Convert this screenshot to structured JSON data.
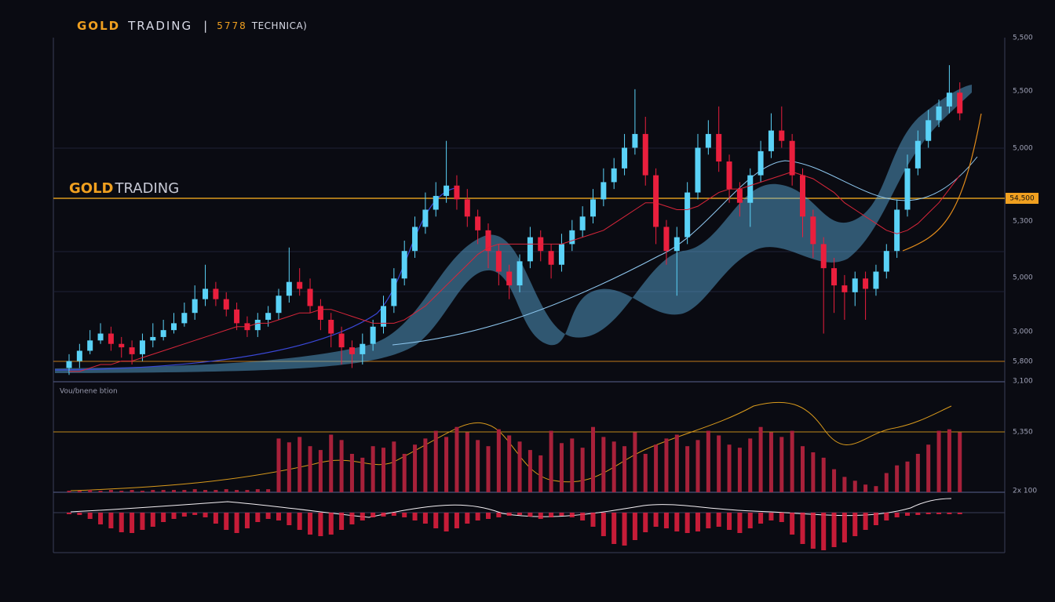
{
  "header": {
    "part1": "GOLD",
    "part2": "TRADING",
    "separator": "|",
    "part3": "5778",
    "part4": "TECHNICA)"
  },
  "price_label": {
    "part1": "GOLD",
    "part2": "TRADING"
  },
  "level_tag": "54,500",
  "right_labels": [
    "5,500",
    "5,500",
    "5,000",
    "5,300",
    "5,000",
    "3,000",
    "5,800",
    "3,100",
    "5,350",
    "2x 100"
  ],
  "volume_label": "Vou/bnene btion",
  "chart_data": [
    {
      "type": "candlestick",
      "ylim": [
        0,
        100
      ],
      "up_color": "#5ad2f7",
      "down_color": "#ea1f3d",
      "open": [
        4,
        6,
        9,
        12,
        14,
        11,
        10,
        8,
        12,
        13,
        15,
        17,
        20,
        24,
        27,
        24,
        21,
        17,
        15,
        18,
        20,
        25,
        29,
        27,
        22,
        18,
        14,
        10,
        8,
        11,
        16,
        22,
        30,
        38,
        45,
        50,
        54,
        57,
        53,
        48,
        44,
        38,
        32,
        28,
        35,
        42,
        38,
        34,
        40,
        44,
        48,
        53,
        58,
        62,
        68,
        72,
        60,
        45,
        38,
        42,
        55,
        68,
        72,
        64,
        56,
        52,
        60,
        67,
        73,
        70,
        60,
        48,
        40,
        33,
        28,
        26,
        30,
        27,
        32,
        38,
        50,
        62,
        70,
        76,
        80,
        84
      ],
      "high": [
        8,
        11,
        15,
        17,
        16,
        13,
        12,
        14,
        17,
        18,
        20,
        23,
        28,
        34,
        29,
        26,
        23,
        19,
        20,
        22,
        27,
        39,
        33,
        30,
        24,
        20,
        16,
        12,
        14,
        18,
        25,
        33,
        41,
        48,
        55,
        58,
        70,
        60,
        56,
        50,
        46,
        40,
        34,
        37,
        45,
        44,
        40,
        43,
        47,
        51,
        56,
        62,
        65,
        72,
        85,
        77,
        62,
        47,
        45,
        58,
        72,
        76,
        80,
        66,
        58,
        62,
        70,
        78,
        80,
        72,
        62,
        50,
        42,
        36,
        31,
        32,
        32,
        34,
        40,
        53,
        66,
        73,
        79,
        82,
        92,
        87
      ],
      "low": [
        2,
        4,
        8,
        11,
        9,
        7,
        5,
        6,
        10,
        12,
        14,
        16,
        18,
        22,
        22,
        19,
        15,
        13,
        13,
        16,
        18,
        23,
        25,
        20,
        15,
        10,
        5,
        4,
        5,
        9,
        14,
        20,
        28,
        36,
        43,
        48,
        52,
        50,
        45,
        40,
        33,
        28,
        24,
        26,
        33,
        35,
        30,
        32,
        38,
        42,
        46,
        51,
        56,
        60,
        66,
        57,
        40,
        34,
        25,
        40,
        53,
        66,
        61,
        52,
        48,
        45,
        58,
        65,
        68,
        57,
        42,
        36,
        14,
        20,
        18,
        22,
        18,
        25,
        30,
        36,
        48,
        60,
        68,
        74,
        78,
        76
      ],
      "close": [
        6,
        9,
        12,
        14,
        11,
        10,
        8,
        12,
        13,
        15,
        17,
        20,
        24,
        27,
        24,
        21,
        17,
        15,
        18,
        20,
        25,
        29,
        27,
        22,
        18,
        14,
        10,
        8,
        11,
        16,
        22,
        30,
        38,
        45,
        50,
        54,
        57,
        53,
        48,
        44,
        38,
        32,
        28,
        35,
        42,
        38,
        34,
        40,
        44,
        48,
        53,
        58,
        62,
        68,
        72,
        60,
        45,
        38,
        42,
        55,
        68,
        72,
        64,
        56,
        52,
        60,
        67,
        73,
        70,
        60,
        48,
        40,
        33,
        28,
        26,
        30,
        27,
        32,
        38,
        50,
        62,
        70,
        76,
        80,
        84,
        78
      ],
      "ma": {
        "color": "#d8263a",
        "values": [
          3,
          3,
          4,
          5,
          5,
          6,
          6,
          7,
          8,
          9,
          10,
          11,
          12,
          13,
          14,
          15,
          16,
          16,
          17,
          17,
          18,
          19,
          20,
          20,
          21,
          21,
          20,
          19,
          18,
          17,
          17,
          17,
          18,
          20,
          22,
          25,
          28,
          31,
          34,
          37,
          39,
          40,
          40,
          40,
          40,
          40,
          40,
          40,
          41,
          42,
          43,
          44,
          46,
          48,
          50,
          52,
          52,
          51,
          50,
          50,
          51,
          53,
          55,
          56,
          56,
          57,
          58,
          59,
          60,
          61,
          60,
          59,
          57,
          55,
          52,
          50,
          48,
          46,
          44,
          43,
          44,
          46,
          49,
          52,
          56,
          60
        ]
      }
    },
    {
      "type": "bar",
      "ylim": [
        0,
        100
      ],
      "color": "#a8213a",
      "values": [
        2,
        2,
        3,
        2,
        3,
        2,
        3,
        2,
        3,
        3,
        3,
        3,
        4,
        3,
        3,
        4,
        3,
        3,
        4,
        4,
        70,
        65,
        72,
        60,
        55,
        75,
        68,
        50,
        45,
        60,
        58,
        66,
        50,
        62,
        70,
        80,
        72,
        85,
        78,
        68,
        60,
        82,
        74,
        66,
        55,
        48,
        80,
        64,
        70,
        58,
        85,
        72,
        66,
        60,
        78,
        50,
        62,
        70,
        75,
        60,
        68,
        80,
        74,
        62,
        58,
        70,
        85,
        78,
        72,
        80,
        60,
        52,
        45,
        30,
        20,
        15,
        10,
        8,
        25,
        35,
        40,
        50,
        62,
        80,
        82,
        78
      ]
    },
    {
      "type": "histogram",
      "ylim": [
        -50,
        5
      ],
      "color": "#e8203f",
      "values": [
        -2,
        -3,
        -8,
        -15,
        -20,
        -25,
        -26,
        -22,
        -18,
        -12,
        -8,
        -5,
        -3,
        -6,
        -14,
        -22,
        -26,
        -20,
        -12,
        -8,
        -10,
        -16,
        -22,
        -28,
        -30,
        -28,
        -22,
        -15,
        -10,
        -6,
        -5,
        -4,
        -6,
        -10,
        -14,
        -20,
        -24,
        -20,
        -14,
        -10,
        -8,
        -6,
        -4,
        -3,
        -5,
        -8,
        -6,
        -4,
        -6,
        -10,
        -18,
        -30,
        -40,
        -42,
        -35,
        -25,
        -18,
        -20,
        -24,
        -26,
        -24,
        -20,
        -18,
        -22,
        -26,
        -20,
        -14,
        -10,
        -12,
        -28,
        -40,
        -46,
        -48,
        -44,
        -38,
        -30,
        -22,
        -16,
        -10,
        -6,
        -4,
        -3,
        -2,
        -2,
        -2,
        -2
      ]
    }
  ]
}
